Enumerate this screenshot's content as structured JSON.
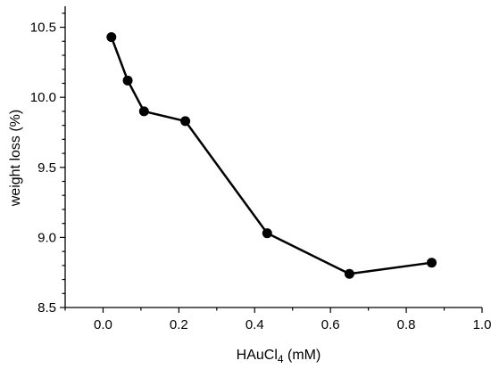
{
  "chart_data": {
    "type": "line",
    "title": "",
    "xlabel": {
      "main": "HAuCl",
      "subscript": "4",
      "suffix": " (mM)"
    },
    "ylabel": "weight loss (%)",
    "xlim": [
      -0.1,
      1.0
    ],
    "ylim": [
      8.5,
      10.65
    ],
    "x_ticks_major": [
      0.0,
      0.2,
      0.4,
      0.6,
      0.8,
      1.0
    ],
    "x_tick_labels": [
      "0.0",
      "0.2",
      "0.4",
      "0.6",
      "0.8",
      "1.0"
    ],
    "y_ticks_major": [
      8.5,
      9.0,
      9.5,
      10.0,
      10.5
    ],
    "y_tick_labels": [
      "8.5",
      "9.0",
      "9.5",
      "10.0",
      "10.5"
    ],
    "grid": false,
    "legend": "none",
    "series": [
      {
        "color": "#000000",
        "marker": "circle",
        "x": [
          0.022,
          0.065,
          0.108,
          0.217,
          0.433,
          0.65,
          0.867
        ],
        "y": [
          10.43,
          10.12,
          9.9,
          9.83,
          9.03,
          8.74,
          8.82
        ]
      }
    ]
  }
}
